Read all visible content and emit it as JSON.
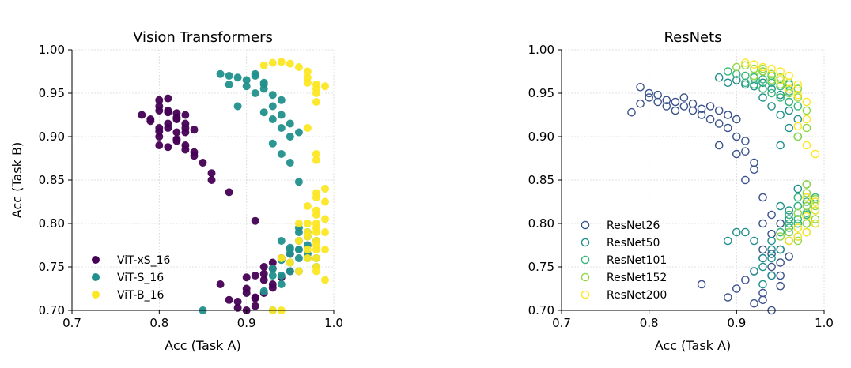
{
  "chart_data": [
    {
      "type": "scatter",
      "title": "Vision Transformers",
      "xlabel": "Acc (Task A)",
      "ylabel": "Acc (Task B)",
      "xlim": [
        0.7,
        1.0
      ],
      "ylim": [
        0.7,
        1.0
      ],
      "xticks": [
        "0.7",
        "0.8",
        "0.9",
        "1.0"
      ],
      "yticks": [
        "0.70",
        "0.75",
        "0.80",
        "0.85",
        "0.90",
        "0.95",
        "1.00"
      ],
      "grid": true,
      "legend": "lower-left",
      "marker": "filled",
      "series": [
        {
          "name": "ViT-xS_16",
          "color": "#440154",
          "x": [
            0.78,
            0.79,
            0.8,
            0.8,
            0.81,
            0.81,
            0.82,
            0.82,
            0.83,
            0.83,
            0.8,
            0.81,
            0.82,
            0.79,
            0.8,
            0.81,
            0.83,
            0.84,
            0.82,
            0.83,
            0.84,
            0.8,
            0.81,
            0.82,
            0.83,
            0.84,
            0.85,
            0.86,
            0.86,
            0.88,
            0.91,
            0.8,
            0.81,
            0.82,
            0.8,
            0.83,
            0.87,
            0.88,
            0.89,
            0.9,
            0.91,
            0.92,
            0.93,
            0.94,
            0.95,
            0.91,
            0.92,
            0.9,
            0.93,
            0.94,
            0.95,
            0.92,
            0.93,
            0.89,
            0.9,
            0.91,
            0.92,
            0.93,
            0.9,
            0.91
          ],
          "y": [
            0.925,
            0.918,
            0.935,
            0.91,
            0.93,
            0.915,
            0.92,
            0.905,
            0.925,
            0.915,
            0.89,
            0.888,
            0.895,
            0.92,
            0.942,
            0.944,
            0.905,
            0.908,
            0.897,
            0.89,
            0.882,
            0.9,
            0.91,
            0.927,
            0.885,
            0.878,
            0.87,
            0.858,
            0.85,
            0.836,
            0.803,
            0.93,
            0.928,
            0.922,
            0.906,
            0.91,
            0.73,
            0.712,
            0.703,
            0.7,
            0.715,
            0.72,
            0.73,
            0.738,
            0.745,
            0.74,
            0.75,
            0.725,
            0.755,
            0.76,
            0.765,
            0.735,
            0.748,
            0.71,
            0.72,
            0.705,
            0.742,
            0.726,
            0.738,
            0.714
          ]
        },
        {
          "name": "ViT-S_16",
          "color": "#21908d",
          "x": [
            0.87,
            0.88,
            0.89,
            0.9,
            0.91,
            0.92,
            0.9,
            0.91,
            0.92,
            0.93,
            0.93,
            0.94,
            0.92,
            0.94,
            0.95,
            0.93,
            0.94,
            0.95,
            0.89,
            0.91,
            0.93,
            0.95,
            0.96,
            0.88,
            0.92,
            0.94,
            0.96,
            0.94,
            0.95,
            0.96,
            0.97,
            0.98,
            0.96,
            0.97,
            0.95,
            0.96,
            0.97,
            0.98,
            0.94,
            0.95,
            0.96,
            0.97,
            0.93,
            0.95,
            0.96,
            0.97,
            0.98,
            0.96,
            0.94,
            0.95,
            0.94,
            0.96,
            0.93,
            0.85,
            0.93,
            0.92
          ],
          "y": [
            0.972,
            0.97,
            0.968,
            0.965,
            0.972,
            0.96,
            0.958,
            0.97,
            0.955,
            0.948,
            0.935,
            0.942,
            0.928,
            0.925,
            0.915,
            0.92,
            0.91,
            0.9,
            0.935,
            0.95,
            0.892,
            0.87,
            0.848,
            0.96,
            0.962,
            0.88,
            0.905,
            0.78,
            0.77,
            0.79,
            0.775,
            0.78,
            0.76,
            0.765,
            0.755,
            0.77,
            0.79,
            0.76,
            0.74,
            0.745,
            0.77,
            0.785,
            0.748,
            0.772,
            0.795,
            0.76,
            0.75,
            0.78,
            0.758,
            0.765,
            0.73,
            0.745,
            0.7,
            0.7,
            0.74,
            0.722
          ],
          "extra": true
        },
        {
          "name": "ViT-B_16",
          "color": "#fde725",
          "x": [
            0.92,
            0.93,
            0.94,
            0.95,
            0.96,
            0.97,
            0.97,
            0.98,
            0.98,
            0.97,
            0.98,
            0.98,
            0.99,
            0.97,
            0.98,
            0.98,
            0.96,
            0.97,
            0.98,
            0.99,
            0.98,
            0.97,
            0.98,
            0.99,
            0.98,
            0.97,
            0.98,
            0.99,
            0.98,
            0.96,
            0.97,
            0.97,
            0.98,
            0.99,
            0.98,
            0.94,
            0.95,
            0.96,
            0.93,
            0.94,
            0.98,
            0.97,
            0.98,
            0.99,
            0.98,
            0.98,
            0.98,
            0.99
          ],
          "y": [
            0.982,
            0.985,
            0.986,
            0.984,
            0.98,
            0.975,
            0.968,
            0.96,
            0.955,
            0.962,
            0.94,
            0.95,
            0.958,
            0.91,
            0.88,
            0.873,
            0.8,
            0.79,
            0.78,
            0.77,
            0.81,
            0.82,
            0.83,
            0.825,
            0.8,
            0.76,
            0.75,
            0.735,
            0.775,
            0.78,
            0.77,
            0.785,
            0.795,
            0.805,
            0.815,
            0.76,
            0.755,
            0.745,
            0.7,
            0.7,
            0.79,
            0.8,
            0.835,
            0.84,
            0.76,
            0.77,
            0.745,
            0.79
          ]
        }
      ]
    },
    {
      "type": "scatter",
      "title": "ResNets",
      "xlabel": "Acc (Task A)",
      "ylabel": "",
      "xlim": [
        0.7,
        1.0
      ],
      "ylim": [
        0.7,
        1.0
      ],
      "xticks": [
        "0.7",
        "0.8",
        "0.9",
        "1.0"
      ],
      "yticks": [
        "0.70",
        "0.75",
        "0.80",
        "0.85",
        "0.90",
        "0.95",
        "1.00"
      ],
      "grid": true,
      "legend": "lower-left",
      "marker": "open",
      "series": [
        {
          "name": "ResNet26",
          "color": "#3b528b",
          "x": [
            0.78,
            0.79,
            0.79,
            0.8,
            0.8,
            0.81,
            0.81,
            0.82,
            0.82,
            0.83,
            0.83,
            0.84,
            0.84,
            0.85,
            0.85,
            0.86,
            0.86,
            0.87,
            0.87,
            0.88,
            0.88,
            0.89,
            0.89,
            0.9,
            0.9,
            0.91,
            0.91,
            0.92,
            0.93,
            0.94,
            0.95,
            0.88,
            0.93,
            0.93,
            0.94,
            0.94,
            0.95,
            0.95,
            0.96,
            0.92,
            0.91,
            0.9,
            0.89,
            0.86,
            0.94,
            0.95,
            0.93,
            0.92,
            0.96,
            0.94,
            0.93,
            0.95,
            0.94,
            0.91,
            0.92,
            0.9,
            0.93
          ],
          "y": [
            0.928,
            0.938,
            0.957,
            0.945,
            0.95,
            0.94,
            0.948,
            0.942,
            0.935,
            0.94,
            0.93,
            0.945,
            0.935,
            0.938,
            0.93,
            0.932,
            0.925,
            0.935,
            0.92,
            0.93,
            0.915,
            0.925,
            0.91,
            0.92,
            0.9,
            0.895,
            0.883,
            0.87,
            0.83,
            0.81,
            0.8,
            0.89,
            0.77,
            0.76,
            0.765,
            0.75,
            0.755,
            0.77,
            0.78,
            0.745,
            0.735,
            0.725,
            0.715,
            0.73,
            0.74,
            0.728,
            0.72,
            0.708,
            0.762,
            0.7,
            0.712,
            0.74,
            0.788,
            0.85,
            0.862,
            0.88,
            0.8
          ]
        },
        {
          "name": "ResNet50",
          "color": "#21908d",
          "x": [
            0.88,
            0.89,
            0.9,
            0.91,
            0.92,
            0.93,
            0.94,
            0.95,
            0.96,
            0.93,
            0.94,
            0.95,
            0.96,
            0.97,
            0.95,
            0.96,
            0.97,
            0.98,
            0.97,
            0.98,
            0.96,
            0.97,
            0.95,
            0.96,
            0.94,
            0.95,
            0.93,
            0.94,
            0.92,
            0.91,
            0.96,
            0.97,
            0.95,
            0.94,
            0.93,
            0.92,
            0.93,
            0.94,
            0.9,
            0.89
          ],
          "y": [
            0.968,
            0.962,
            0.965,
            0.96,
            0.958,
            0.962,
            0.955,
            0.948,
            0.94,
            0.945,
            0.935,
            0.925,
            0.93,
            0.92,
            0.89,
            0.91,
            0.9,
            0.83,
            0.82,
            0.81,
            0.815,
            0.8,
            0.79,
            0.805,
            0.78,
            0.77,
            0.76,
            0.77,
            0.78,
            0.79,
            0.79,
            0.84,
            0.82,
            0.76,
            0.75,
            0.745,
            0.73,
            0.74,
            0.79,
            0.78
          ]
        },
        {
          "name": "ResNet101",
          "color": "#35b779",
          "x": [
            0.89,
            0.9,
            0.91,
            0.92,
            0.93,
            0.94,
            0.95,
            0.96,
            0.91,
            0.92,
            0.93,
            0.94,
            0.95,
            0.96,
            0.97,
            0.93,
            0.94,
            0.95,
            0.96,
            0.97,
            0.97,
            0.98,
            0.98,
            0.99,
            0.98,
            0.97,
            0.99,
            0.98,
            0.97,
            0.96,
            0.98,
            0.99,
            0.97,
            0.98,
            0.96,
            0.97,
            0.99,
            0.98,
            0.95,
            0.96
          ],
          "y": [
            0.975,
            0.972,
            0.97,
            0.968,
            0.966,
            0.962,
            0.958,
            0.952,
            0.962,
            0.96,
            0.955,
            0.95,
            0.945,
            0.94,
            0.935,
            0.975,
            0.97,
            0.965,
            0.96,
            0.955,
            0.83,
            0.825,
            0.82,
            0.815,
            0.81,
            0.805,
            0.83,
            0.845,
            0.8,
            0.795,
            0.79,
            0.8,
            0.785,
            0.8,
            0.81,
            0.82,
            0.825,
            0.812,
            0.79,
            0.8
          ]
        },
        {
          "name": "ResNet152",
          "color": "#90d743",
          "x": [
            0.9,
            0.91,
            0.92,
            0.93,
            0.94,
            0.95,
            0.96,
            0.97,
            0.97,
            0.98,
            0.98,
            0.97,
            0.96,
            0.95,
            0.94,
            0.93,
            0.92,
            0.98,
            0.99,
            0.98,
            0.97,
            0.99,
            0.98,
            0.97,
            0.96,
            0.95,
            0.98,
            0.99,
            0.97,
            0.98
          ],
          "y": [
            0.98,
            0.982,
            0.978,
            0.975,
            0.972,
            0.968,
            0.962,
            0.955,
            0.945,
            0.93,
            0.91,
            0.9,
            0.95,
            0.96,
            0.965,
            0.978,
            0.97,
            0.835,
            0.828,
            0.82,
            0.812,
            0.805,
            0.8,
            0.795,
            0.79,
            0.785,
            0.845,
            0.82,
            0.78,
            0.79
          ]
        },
        {
          "name": "ResNet200",
          "color": "#fde725",
          "x": [
            0.91,
            0.92,
            0.93,
            0.94,
            0.95,
            0.96,
            0.97,
            0.97,
            0.98,
            0.98,
            0.98,
            0.99,
            0.96,
            0.95,
            0.97,
            0.98,
            0.99,
            0.99,
            0.98,
            0.97,
            0.99,
            0.98,
            0.97,
            0.96
          ],
          "y": [
            0.985,
            0.983,
            0.98,
            0.978,
            0.975,
            0.97,
            0.96,
            0.948,
            0.94,
            0.92,
            0.89,
            0.88,
            0.955,
            0.965,
            0.912,
            0.83,
            0.815,
            0.8,
            0.79,
            0.785,
            0.825,
            0.808,
            0.795,
            0.78
          ]
        }
      ]
    }
  ]
}
